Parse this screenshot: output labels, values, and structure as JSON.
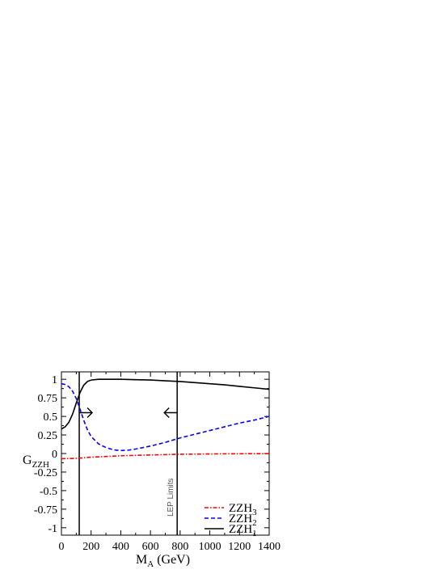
{
  "chart_data": {
    "type": "line",
    "title": "",
    "xlabel": {
      "main": "M",
      "sub": "A",
      "suffix": " (GeV)"
    },
    "ylabel": {
      "main": "G",
      "sub": "ZZH"
    },
    "xlim": [
      0,
      1400
    ],
    "ylim": [
      -1.1,
      1.1
    ],
    "xticks": [
      0,
      200,
      400,
      600,
      800,
      1000,
      1200,
      1400
    ],
    "xtick_labels": [
      "0",
      "200",
      "400",
      "600",
      "800",
      "1000",
      "1200",
      "1400"
    ],
    "yticks": [
      1,
      0.75,
      0.5,
      0.25,
      0,
      -0.25,
      -0.5,
      -0.75,
      -1
    ],
    "ytick_labels": [
      "1",
      "0.75",
      "0.5",
      "0.25",
      "0",
      "-0.25",
      "-0.5",
      "-0.75",
      "-1"
    ],
    "grid": false,
    "legend_position": "bottom-right",
    "series": [
      {
        "name": "ZZH",
        "name_sub": "3",
        "style": "dash-dot",
        "color": "#ff0000",
        "x": [
          0,
          100,
          200,
          300,
          400,
          500,
          600,
          700,
          800,
          900,
          1000,
          1100,
          1200,
          1300,
          1400
        ],
        "y": [
          -0.07,
          -0.065,
          -0.05,
          -0.04,
          -0.03,
          -0.025,
          -0.02,
          -0.015,
          -0.01,
          -0.008,
          -0.006,
          -0.004,
          -0.003,
          -0.002,
          -0.002
        ]
      },
      {
        "name": "ZZH",
        "name_sub": "2",
        "style": "dashed",
        "color": "#0000ff",
        "x": [
          0,
          25,
          50,
          75,
          100,
          125,
          150,
          175,
          200,
          250,
          300,
          350,
          400,
          450,
          500,
          600,
          700,
          800,
          900,
          1000,
          1100,
          1200,
          1300,
          1400
        ],
        "y": [
          0.94,
          0.93,
          0.9,
          0.84,
          0.74,
          0.6,
          0.45,
          0.32,
          0.23,
          0.13,
          0.08,
          0.05,
          0.04,
          0.045,
          0.06,
          0.1,
          0.15,
          0.21,
          0.26,
          0.31,
          0.36,
          0.41,
          0.45,
          0.5
        ]
      },
      {
        "name": "ZZH",
        "name_sub": "1",
        "style": "solid",
        "color": "#000000",
        "x": [
          0,
          25,
          50,
          75,
          100,
          125,
          150,
          175,
          200,
          250,
          300,
          400,
          500,
          600,
          700,
          800,
          900,
          1000,
          1100,
          1200,
          1300,
          1400
        ],
        "y": [
          0.33,
          0.36,
          0.42,
          0.53,
          0.68,
          0.82,
          0.92,
          0.97,
          0.99,
          1.0,
          1.0,
          1.0,
          0.995,
          0.99,
          0.98,
          0.97,
          0.955,
          0.94,
          0.925,
          0.905,
          0.885,
          0.865
        ]
      }
    ],
    "vertical_lines": [
      {
        "x": 120,
        "color": "#000000"
      },
      {
        "x": 780,
        "color": "#000000"
      }
    ],
    "arrows": [
      {
        "x": 120,
        "y": 0.55,
        "direction": "right"
      },
      {
        "x": 780,
        "y": 0.55,
        "direction": "left"
      }
    ],
    "annotations": [
      {
        "text": "LEP Limits",
        "x": 720,
        "y": -0.85,
        "rotation": -90
      }
    ]
  }
}
